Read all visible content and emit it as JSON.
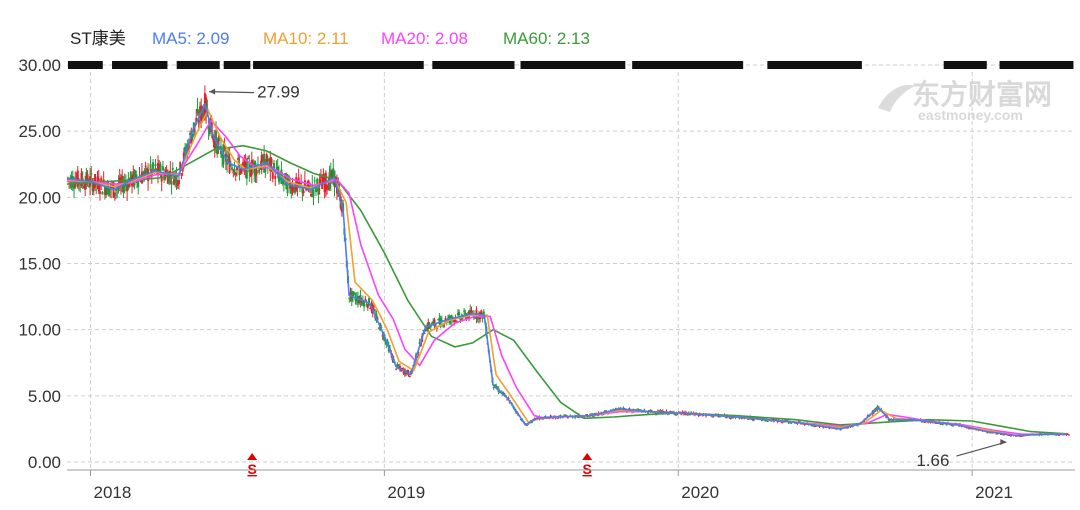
{
  "chart_data": {
    "type": "line",
    "title": "ST康美",
    "legend": [
      {
        "label": "MA5: 2.09",
        "color": "#4c7cf3"
      },
      {
        "label": "MA10: 2.11",
        "color": "#f0a030"
      },
      {
        "label": "MA20: 2.08",
        "color": "#ff40ff"
      },
      {
        "label": "MA60: 2.13",
        "color": "#3a9a3a"
      }
    ],
    "x_ticks": [
      "2018",
      "2019",
      "2020",
      "2021"
    ],
    "x_range": [
      2017.92,
      2021.35
    ],
    "y_ticks": [
      "30.00",
      "25.00",
      "20.00",
      "15.00",
      "10.00",
      "5.00",
      "0.00"
    ],
    "ylim": [
      0,
      30
    ],
    "grid": true,
    "annotations": [
      {
        "text": "27.99",
        "x": 2018.39,
        "y": 27.99
      },
      {
        "text": "1.66",
        "x": 2021.13,
        "y": 1.66
      }
    ],
    "markers": [
      {
        "text": "S",
        "x": 2018.55,
        "color": "#e00000"
      },
      {
        "text": "S",
        "x": 2019.69,
        "color": "#e00000"
      }
    ],
    "watermark": {
      "cn": "东方财富网",
      "en": "eastmoney.com"
    },
    "series": [
      {
        "name": "MA5",
        "color": "#4c7cf3",
        "points": [
          [
            2017.92,
            21.4
          ],
          [
            2018.0,
            21.2
          ],
          [
            2018.08,
            20.6
          ],
          [
            2018.14,
            21.3
          ],
          [
            2018.22,
            22.0
          ],
          [
            2018.3,
            21.6
          ],
          [
            2018.35,
            25.2
          ],
          [
            2018.39,
            27.0
          ],
          [
            2018.42,
            24.5
          ],
          [
            2018.47,
            22.6
          ],
          [
            2018.52,
            22.1
          ],
          [
            2018.6,
            22.6
          ],
          [
            2018.67,
            21.0
          ],
          [
            2018.75,
            20.6
          ],
          [
            2018.83,
            21.5
          ],
          [
            2018.86,
            19.0
          ],
          [
            2018.88,
            12.6
          ],
          [
            2018.95,
            12.0
          ],
          [
            2019.0,
            9.5
          ],
          [
            2019.04,
            7.2
          ],
          [
            2019.09,
            6.6
          ],
          [
            2019.14,
            10.2
          ],
          [
            2019.22,
            10.8
          ],
          [
            2019.3,
            11.2
          ],
          [
            2019.34,
            11.1
          ],
          [
            2019.37,
            5.8
          ],
          [
            2019.42,
            4.8
          ],
          [
            2019.48,
            2.8
          ],
          [
            2019.52,
            3.3
          ],
          [
            2019.58,
            3.4
          ],
          [
            2019.7,
            3.5
          ],
          [
            2019.8,
            4.0
          ],
          [
            2019.9,
            3.8
          ],
          [
            2020.0,
            3.7
          ],
          [
            2020.2,
            3.4
          ],
          [
            2020.4,
            3.0
          ],
          [
            2020.55,
            2.5
          ],
          [
            2020.62,
            2.9
          ],
          [
            2020.68,
            4.1
          ],
          [
            2020.72,
            3.2
          ],
          [
            2020.8,
            3.2
          ],
          [
            2020.95,
            2.8
          ],
          [
            2021.05,
            2.3
          ],
          [
            2021.15,
            2.0
          ],
          [
            2021.25,
            2.1
          ],
          [
            2021.32,
            2.09
          ]
        ]
      },
      {
        "name": "MA10",
        "color": "#f0a030",
        "points": [
          [
            2017.92,
            21.3
          ],
          [
            2018.0,
            21.2
          ],
          [
            2018.08,
            20.8
          ],
          [
            2018.14,
            21.2
          ],
          [
            2018.22,
            21.9
          ],
          [
            2018.3,
            21.7
          ],
          [
            2018.36,
            24.8
          ],
          [
            2018.4,
            26.6
          ],
          [
            2018.44,
            24.6
          ],
          [
            2018.49,
            22.8
          ],
          [
            2018.53,
            22.1
          ],
          [
            2018.6,
            22.4
          ],
          [
            2018.67,
            21.2
          ],
          [
            2018.75,
            20.7
          ],
          [
            2018.83,
            21.4
          ],
          [
            2018.87,
            19.6
          ],
          [
            2018.9,
            13.6
          ],
          [
            2018.96,
            12.2
          ],
          [
            2019.01,
            10.0
          ],
          [
            2019.05,
            7.6
          ],
          [
            2019.1,
            6.9
          ],
          [
            2019.15,
            9.8
          ],
          [
            2019.22,
            10.7
          ],
          [
            2019.3,
            11.1
          ],
          [
            2019.35,
            11.1
          ],
          [
            2019.38,
            6.6
          ],
          [
            2019.43,
            5.0
          ],
          [
            2019.49,
            3.0
          ],
          [
            2019.53,
            3.3
          ],
          [
            2019.58,
            3.4
          ],
          [
            2019.7,
            3.5
          ],
          [
            2019.8,
            3.9
          ],
          [
            2019.9,
            3.8
          ],
          [
            2020.0,
            3.7
          ],
          [
            2020.2,
            3.4
          ],
          [
            2020.4,
            3.0
          ],
          [
            2020.55,
            2.6
          ],
          [
            2020.63,
            2.9
          ],
          [
            2020.69,
            3.9
          ],
          [
            2020.74,
            3.3
          ],
          [
            2020.8,
            3.2
          ],
          [
            2020.95,
            2.8
          ],
          [
            2021.05,
            2.4
          ],
          [
            2021.15,
            2.0
          ],
          [
            2021.25,
            2.1
          ],
          [
            2021.32,
            2.11
          ]
        ]
      },
      {
        "name": "MA20",
        "color": "#ff40ff",
        "points": [
          [
            2017.92,
            21.2
          ],
          [
            2018.0,
            21.2
          ],
          [
            2018.08,
            21.0
          ],
          [
            2018.14,
            21.1
          ],
          [
            2018.22,
            21.7
          ],
          [
            2018.3,
            21.8
          ],
          [
            2018.36,
            23.9
          ],
          [
            2018.41,
            25.8
          ],
          [
            2018.46,
            24.6
          ],
          [
            2018.51,
            23.1
          ],
          [
            2018.56,
            22.3
          ],
          [
            2018.62,
            22.2
          ],
          [
            2018.68,
            21.4
          ],
          [
            2018.76,
            20.9
          ],
          [
            2018.84,
            21.3
          ],
          [
            2018.88,
            20.3
          ],
          [
            2018.92,
            16.4
          ],
          [
            2018.98,
            12.6
          ],
          [
            2019.03,
            10.8
          ],
          [
            2019.07,
            8.5
          ],
          [
            2019.12,
            7.3
          ],
          [
            2019.17,
            9.2
          ],
          [
            2019.24,
            10.5
          ],
          [
            2019.31,
            11.0
          ],
          [
            2019.36,
            11.0
          ],
          [
            2019.4,
            8.0
          ],
          [
            2019.45,
            5.6
          ],
          [
            2019.51,
            3.5
          ],
          [
            2019.55,
            3.3
          ],
          [
            2019.6,
            3.4
          ],
          [
            2019.7,
            3.5
          ],
          [
            2019.8,
            3.8
          ],
          [
            2019.9,
            3.8
          ],
          [
            2020.0,
            3.7
          ],
          [
            2020.2,
            3.4
          ],
          [
            2020.4,
            3.0
          ],
          [
            2020.56,
            2.7
          ],
          [
            2020.64,
            2.9
          ],
          [
            2020.71,
            3.6
          ],
          [
            2020.77,
            3.4
          ],
          [
            2020.85,
            3.1
          ],
          [
            2020.97,
            2.8
          ],
          [
            2021.07,
            2.4
          ],
          [
            2021.17,
            2.1
          ],
          [
            2021.26,
            2.1
          ],
          [
            2021.32,
            2.08
          ]
        ]
      },
      {
        "name": "MA60",
        "color": "#3a9a3a",
        "points": [
          [
            2017.92,
            21.0
          ],
          [
            2018.05,
            21.2
          ],
          [
            2018.15,
            21.3
          ],
          [
            2018.25,
            21.5
          ],
          [
            2018.33,
            22.5
          ],
          [
            2018.42,
            23.6
          ],
          [
            2018.52,
            23.9
          ],
          [
            2018.6,
            23.5
          ],
          [
            2018.68,
            22.6
          ],
          [
            2018.76,
            21.8
          ],
          [
            2018.84,
            21.3
          ],
          [
            2018.92,
            19.0
          ],
          [
            2019.0,
            15.8
          ],
          [
            2019.08,
            12.2
          ],
          [
            2019.16,
            9.5
          ],
          [
            2019.24,
            8.7
          ],
          [
            2019.3,
            9.0
          ],
          [
            2019.37,
            10.0
          ],
          [
            2019.44,
            9.2
          ],
          [
            2019.52,
            6.8
          ],
          [
            2019.6,
            4.5
          ],
          [
            2019.68,
            3.3
          ],
          [
            2019.78,
            3.4
          ],
          [
            2019.9,
            3.6
          ],
          [
            2020.0,
            3.7
          ],
          [
            2020.2,
            3.5
          ],
          [
            2020.4,
            3.2
          ],
          [
            2020.55,
            2.8
          ],
          [
            2020.7,
            3.0
          ],
          [
            2020.85,
            3.2
          ],
          [
            2021.0,
            3.1
          ],
          [
            2021.1,
            2.7
          ],
          [
            2021.2,
            2.3
          ],
          [
            2021.32,
            2.13
          ]
        ]
      }
    ]
  }
}
